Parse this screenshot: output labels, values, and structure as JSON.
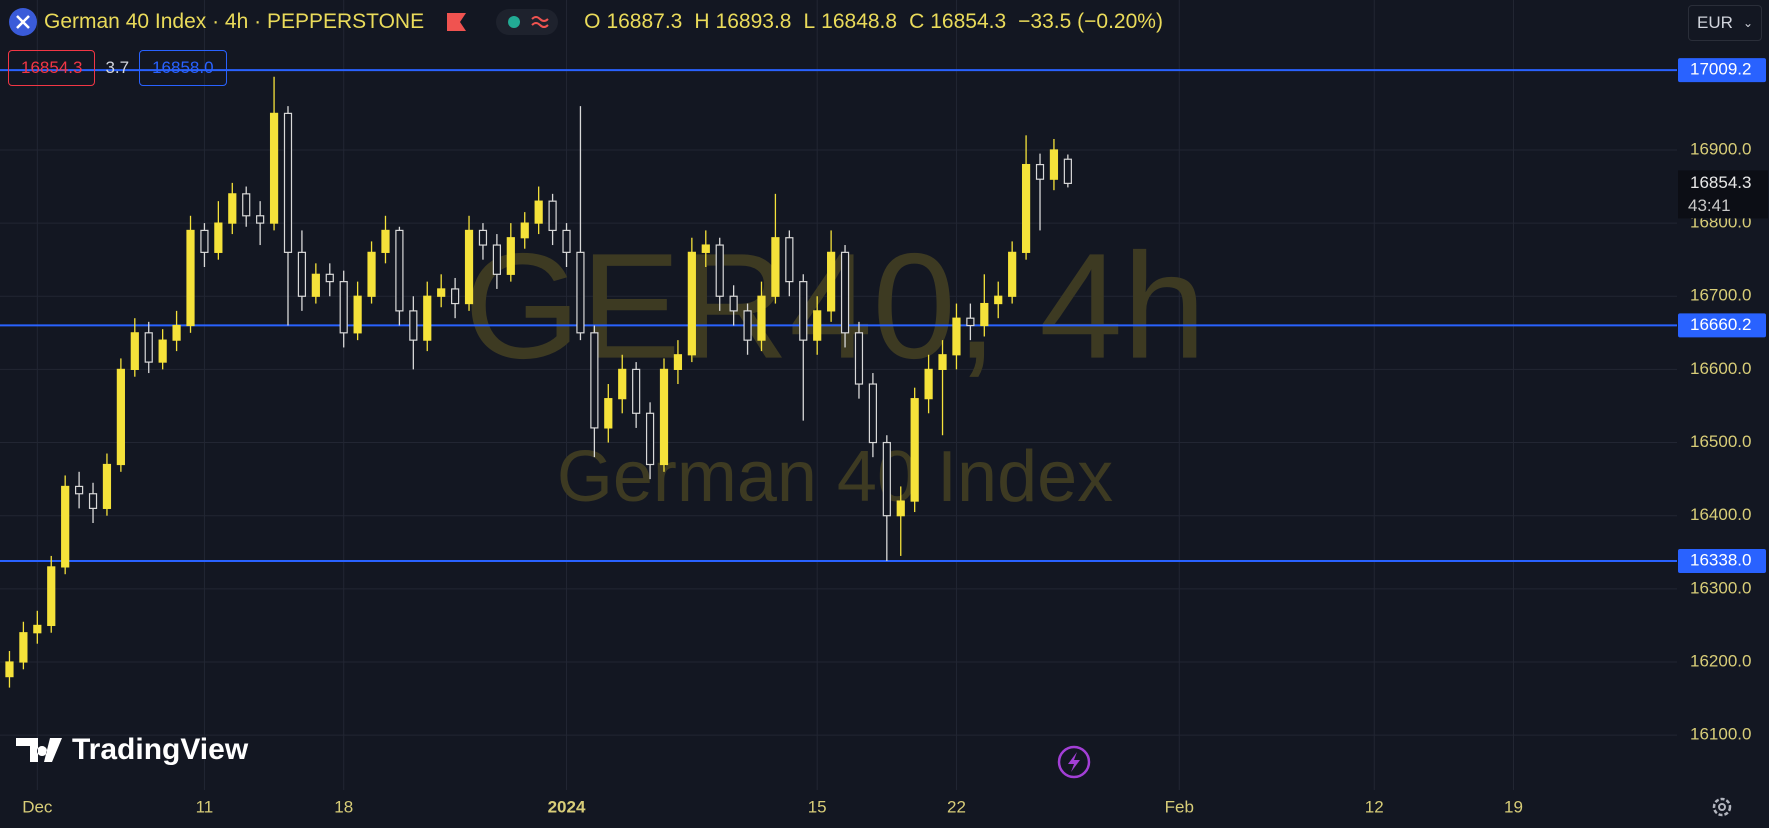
{
  "header": {
    "symbol": "German 40 Index · 4h · PEPPERSTONE",
    "ohlc_labels": [
      "O",
      "H",
      "L",
      "C"
    ],
    "change": "−33.5 (−0.20%)",
    "bid": 16854.3,
    "spread": 3.7,
    "ask": {
      "value": 16858,
      "label": "16858.0"
    },
    "currency": "EUR"
  },
  "chart_data": {
    "type": "candlestick",
    "watermark": [
      "GER40, 4h",
      "German 40 Index"
    ],
    "x": [
      -1,
      -0.5,
      0,
      0.5,
      1,
      1.5,
      2,
      2.5,
      3,
      3.5,
      4,
      4.5,
      5,
      5.5,
      6,
      6.5,
      7,
      7.5,
      8,
      8.5,
      9,
      9.5,
      10,
      10.5,
      11,
      11.5,
      12,
      12.5,
      13,
      13.5,
      14,
      14.5,
      15,
      15.5,
      16,
      16.5,
      17,
      17.5,
      18,
      18.5,
      19,
      19.5,
      20,
      20.5,
      21,
      21.5,
      22,
      22.5,
      23,
      23.5,
      24,
      24.5,
      25,
      25.5,
      26,
      26.5,
      27,
      27.5,
      28,
      28.5,
      29,
      29.5,
      30,
      30.5,
      31,
      31.5,
      32,
      32.5,
      33,
      33.5,
      34,
      34.5,
      35,
      35.5,
      36,
      36.5,
      37
    ],
    "open": [
      16180,
      16200,
      16240,
      16250,
      16330,
      16440,
      16430,
      16410,
      16470,
      16600,
      16650,
      16610,
      16640,
      16660,
      16790,
      16760,
      16800,
      16840,
      16810,
      16800,
      16950,
      16760,
      16700,
      16730,
      16720,
      16650,
      16700,
      16760,
      16790,
      16680,
      16640,
      16700,
      16710,
      16690,
      16790,
      16770,
      16730,
      16780,
      16800,
      16830,
      16790,
      16760,
      16650,
      16520,
      16560,
      16600,
      16540,
      16470,
      16600,
      16620,
      16760,
      16770,
      16700,
      16680,
      16640,
      16700,
      16780,
      16720,
      16640,
      16680,
      16760,
      16650,
      16580,
      16500,
      16400,
      16420,
      16560,
      16600,
      16620,
      16670,
      16660,
      16690,
      16700,
      16760,
      16880,
      16860,
      16887.3
    ],
    "high": [
      16215,
      16255,
      16270,
      16345,
      16455,
      16460,
      16445,
      16485,
      16615,
      16670,
      16665,
      16655,
      16680,
      16810,
      16800,
      16830,
      16855,
      16850,
      16830,
      17000,
      16960,
      16790,
      16745,
      16745,
      16735,
      16720,
      16775,
      16810,
      16795,
      16700,
      16720,
      16730,
      16725,
      16810,
      16800,
      16785,
      16800,
      16815,
      16850,
      16840,
      16800,
      16960,
      16660,
      16580,
      16620,
      16610,
      16555,
      16615,
      16640,
      16780,
      16790,
      16780,
      16715,
      16690,
      16720,
      16840,
      16790,
      16730,
      16700,
      16790,
      16770,
      16665,
      16595,
      16510,
      16440,
      16575,
      16620,
      16640,
      16690,
      16690,
      16730,
      16720,
      16775,
      16920,
      16895,
      16915,
      16893.8
    ],
    "low": [
      16165,
      16190,
      16225,
      16240,
      16320,
      16410,
      16390,
      16400,
      16460,
      16590,
      16595,
      16600,
      16625,
      16650,
      16740,
      16750,
      16785,
      16795,
      16770,
      16790,
      16660,
      16680,
      16690,
      16700,
      16630,
      16640,
      16690,
      16745,
      16660,
      16600,
      16625,
      16685,
      16670,
      16680,
      16750,
      16710,
      16720,
      16765,
      16785,
      16770,
      16740,
      16640,
      16480,
      16500,
      16540,
      16520,
      16450,
      16460,
      16580,
      16610,
      16740,
      16680,
      16660,
      16620,
      16625,
      16690,
      16700,
      16530,
      16620,
      16665,
      16630,
      16560,
      16480,
      16338,
      16345,
      16405,
      16540,
      16510,
      16600,
      16640,
      16645,
      16670,
      16690,
      16750,
      16790,
      16845,
      16848.8
    ],
    "close": [
      16200,
      16240,
      16250,
      16330,
      16440,
      16430,
      16410,
      16470,
      16600,
      16650,
      16610,
      16640,
      16660,
      16790,
      16760,
      16800,
      16840,
      16810,
      16800,
      16950,
      16760,
      16700,
      16730,
      16720,
      16650,
      16700,
      16760,
      16790,
      16680,
      16640,
      16700,
      16710,
      16690,
      16790,
      16770,
      16730,
      16780,
      16800,
      16830,
      16790,
      16760,
      16650,
      16520,
      16560,
      16600,
      16540,
      16470,
      16600,
      16620,
      16760,
      16770,
      16700,
      16680,
      16640,
      16700,
      16780,
      16720,
      16640,
      16680,
      16760,
      16650,
      16580,
      16500,
      16400,
      16420,
      16560,
      16600,
      16620,
      16670,
      16660,
      16690,
      16700,
      16760,
      16880,
      16860,
      16900,
      16854.3
    ],
    "up_color": "#f5e23a",
    "down_color": "#d8d8d8",
    "xlim": [
      -1.34,
      58.87
    ],
    "xticks": [
      {
        "value": 0,
        "label": "Dec"
      },
      {
        "value": 6,
        "label": "11"
      },
      {
        "value": 11,
        "label": "18"
      },
      {
        "value": 19,
        "label": "2024"
      },
      {
        "value": 28,
        "label": "15"
      },
      {
        "value": 33,
        "label": "22"
      },
      {
        "value": 41,
        "label": "Feb"
      },
      {
        "value": 48,
        "label": "12"
      },
      {
        "value": 53,
        "label": "19"
      }
    ],
    "ylim": [
      16025,
      17105
    ],
    "yticks": [
      {
        "value": 16100,
        "label": "16100.0"
      },
      {
        "value": 16200,
        "label": "16200.0"
      },
      {
        "value": 16300,
        "label": "16300.0"
      },
      {
        "value": 16400,
        "label": "16400.0"
      },
      {
        "value": 16500,
        "label": "16500.0"
      },
      {
        "value": 16600,
        "label": "16600.0"
      },
      {
        "value": 16700,
        "label": "16700.0"
      },
      {
        "value": 16800,
        "label": "16800.0"
      },
      {
        "value": 16900,
        "label": "16900.0"
      }
    ],
    "grid": true,
    "levels": [
      17009.2,
      16660.2,
      {
        "value": 16338,
        "label": "16338.0"
      }
    ],
    "level_color": "#2962ff",
    "countdown": "43:41"
  },
  "branding": "TradingView"
}
